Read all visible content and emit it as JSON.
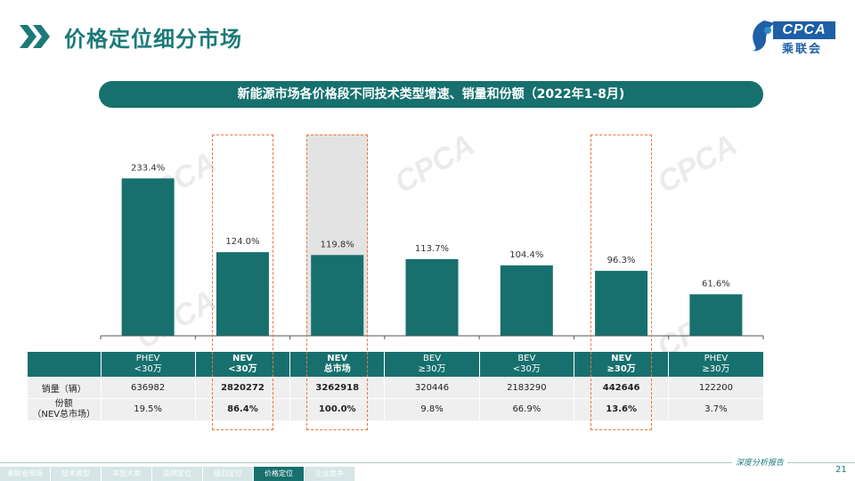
{
  "header": {
    "title": "价格定位细分市场",
    "logo_text": "CPCA",
    "logo_sub": "乘联会"
  },
  "banner": "新能源市场各价格段不同技术类型增速、销量和份额（2022年1-8月)",
  "chart_data": {
    "type": "bar",
    "categories": [
      "PHEV <30万",
      "NEV <30万",
      "NEV 总市场",
      "BEV ≥30万",
      "BEV <30万",
      "NEV ≥30万",
      "PHEV ≥30万"
    ],
    "values": [
      233.4,
      124.0,
      119.8,
      113.7,
      104.4,
      96.3,
      61.6
    ],
    "value_labels": [
      "233.4%",
      "124.0%",
      "119.8%",
      "113.7%",
      "104.4%",
      "96.3%",
      "61.6%"
    ],
    "ylim": [
      0,
      280
    ],
    "bar_color": "#17706e",
    "highlight_fill_index": 2,
    "highlight_box_indices": [
      1,
      2,
      5
    ]
  },
  "table": {
    "headers": [
      {
        "line1": "PHEV",
        "line2": "<30万"
      },
      {
        "line1": "NEV",
        "line2": "<30万"
      },
      {
        "line1": "NEV",
        "line2": "总市场"
      },
      {
        "line1": "BEV",
        "line2": "≥30万"
      },
      {
        "line1": "BEV",
        "line2": "<30万"
      },
      {
        "line1": "NEV",
        "line2": "≥30万"
      },
      {
        "line1": "PHEV",
        "line2": "≥30万"
      }
    ],
    "sales_label": "销量（辆）",
    "sales": [
      "636982",
      "2820272",
      "3262918",
      "320446",
      "2183290",
      "442646",
      "122200"
    ],
    "share_label_line1": "份额",
    "share_label_line2": "（NEV总市场）",
    "share": [
      "19.5%",
      "86.4%",
      "100.0%",
      "9.8%",
      "66.9%",
      "13.6%",
      "3.7%"
    ]
  },
  "footer": {
    "slogan": "深度分析报告",
    "page_number": "21",
    "nav": [
      "乘联会市场",
      "技术类型",
      "车型大类",
      "品牌定位",
      "级别定位",
      "价格定位",
      "企业竞争"
    ],
    "active_index": 5
  },
  "colors": {
    "primary": "#17706e",
    "highlight_border": "#e9773a"
  }
}
